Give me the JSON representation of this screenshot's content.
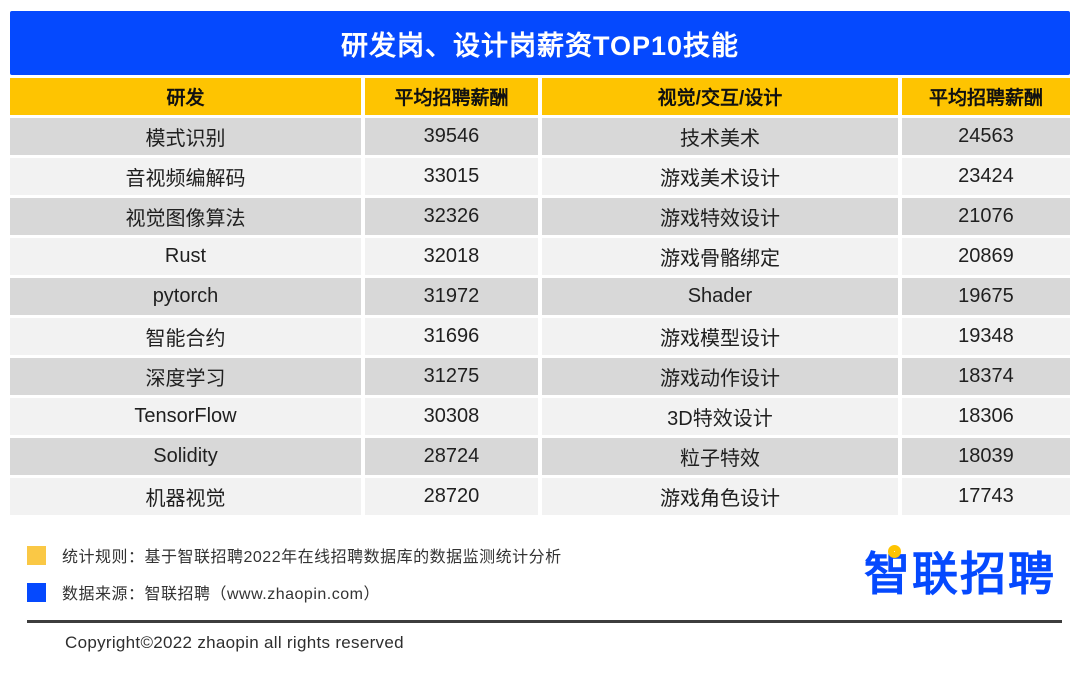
{
  "title_bar": {
    "title": "研发岗、设计岗薪资TOP10技能"
  },
  "chart_data": {
    "type": "table",
    "title": "研发岗、设计岗薪资TOP10技能",
    "columns": [
      "研发",
      "平均招聘薪酬",
      "视觉/交互/设计",
      "平均招聘薪酬"
    ],
    "rows": [
      [
        "模式识别",
        39546,
        "技术美术",
        24563
      ],
      [
        "音视频编解码",
        33015,
        "游戏美术设计",
        23424
      ],
      [
        "视觉图像算法",
        32326,
        "游戏特效设计",
        21076
      ],
      [
        "Rust",
        32018,
        "游戏骨骼绑定",
        20869
      ],
      [
        "pytorch",
        31972,
        "Shader",
        19675
      ],
      [
        "智能合约",
        31696,
        "游戏模型设计",
        19348
      ],
      [
        "深度学习",
        31275,
        "游戏动作设计",
        18374
      ],
      [
        "TensorFlow",
        30308,
        "3D特效设计",
        18306
      ],
      [
        "Solidity",
        28724,
        "粒子特效",
        18039
      ],
      [
        "机器视觉",
        28720,
        "游戏角色设计",
        17743
      ]
    ],
    "layout": {
      "grid": "off",
      "row_striping": [
        "#d8d8d8",
        "#f2f2f2"
      ]
    }
  },
  "legend": {
    "rule_text": "统计规则：基于智联招聘2022年在线招聘数据库的数据监测统计分析",
    "source_text": "数据来源：智联招聘（www.zhaopin.com）"
  },
  "logo": {
    "text": "智联招聘"
  },
  "footer": {
    "copyright": "Copyright©2022 zhaopin all rights reserved"
  },
  "colors": {
    "brand_blue": "#0549fe",
    "header_yellow": "#fec401",
    "legend_yellow": "#fac845",
    "row_dark": "#d8d8d8",
    "row_light": "#f2f2f2"
  }
}
